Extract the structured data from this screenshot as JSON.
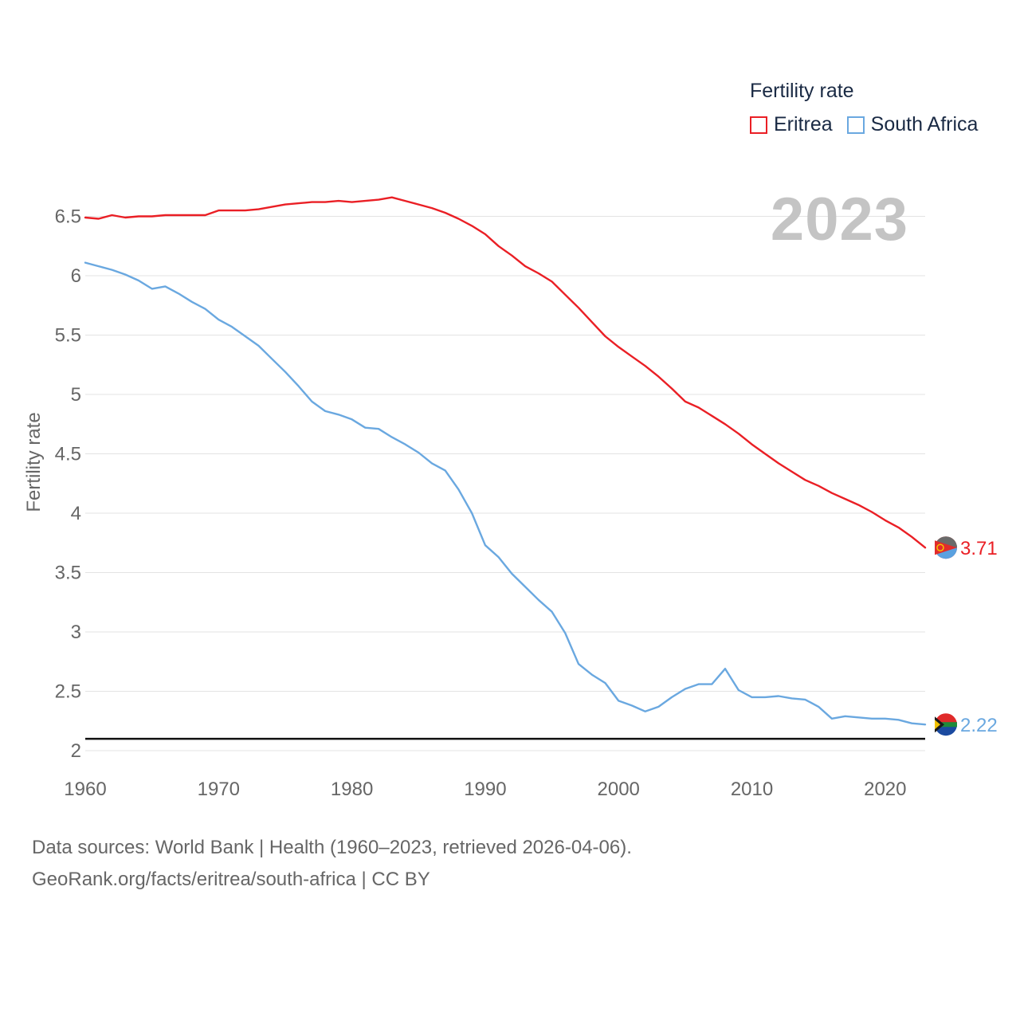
{
  "legend": {
    "title": "Fertility rate",
    "items": [
      {
        "label": "Eritrea",
        "color": "#ea1f25"
      },
      {
        "label": "South Africa",
        "color": "#6aa8e0"
      }
    ]
  },
  "year_label": "2023",
  "footer": {
    "line1": "Data sources: World Bank | Health (1960–2023, retrieved 2026-04-06).",
    "line2": "GeoRank.org/facts/eritrea/south-africa | CC BY"
  },
  "chart_data": {
    "type": "line",
    "title": "Fertility rate",
    "xlabel": "",
    "ylabel": "Fertility rate",
    "xlim": [
      1960,
      2023
    ],
    "ylim": [
      2,
      6.7
    ],
    "xticks": [
      1960,
      1970,
      1980,
      1990,
      2000,
      2010,
      2020
    ],
    "yticks": [
      2,
      2.5,
      3,
      3.5,
      4,
      4.5,
      5,
      5.5,
      6,
      6.5
    ],
    "ytick_labels": [
      "2",
      "2.5",
      "3",
      "3.5",
      "4",
      "4.5",
      "5",
      "5.5",
      "6",
      "6.5"
    ],
    "reference_line": 2.1,
    "grid": true,
    "x": [
      1960,
      1961,
      1962,
      1963,
      1964,
      1965,
      1966,
      1967,
      1968,
      1969,
      1970,
      1971,
      1972,
      1973,
      1974,
      1975,
      1976,
      1977,
      1978,
      1979,
      1980,
      1981,
      1982,
      1983,
      1984,
      1985,
      1986,
      1987,
      1988,
      1989,
      1990,
      1991,
      1992,
      1993,
      1994,
      1995,
      1996,
      1997,
      1998,
      1999,
      2000,
      2001,
      2002,
      2003,
      2004,
      2005,
      2006,
      2007,
      2008,
      2009,
      2010,
      2011,
      2012,
      2013,
      2014,
      2015,
      2016,
      2017,
      2018,
      2019,
      2020,
      2021,
      2022,
      2023
    ],
    "series": [
      {
        "name": "Eritrea",
        "color": "#ea1f25",
        "end_label": "3.71",
        "values": [
          6.49,
          6.48,
          6.51,
          6.49,
          6.5,
          6.5,
          6.51,
          6.51,
          6.51,
          6.51,
          6.55,
          6.55,
          6.55,
          6.56,
          6.58,
          6.6,
          6.61,
          6.62,
          6.62,
          6.63,
          6.62,
          6.63,
          6.64,
          6.66,
          6.63,
          6.6,
          6.57,
          6.53,
          6.48,
          6.42,
          6.35,
          6.25,
          6.17,
          6.08,
          6.02,
          5.95,
          5.84,
          5.73,
          5.61,
          5.49,
          5.4,
          5.32,
          5.24,
          5.15,
          5.05,
          4.94,
          4.89,
          4.82,
          4.75,
          4.67,
          4.58,
          4.5,
          4.42,
          4.35,
          4.28,
          4.23,
          4.17,
          4.12,
          4.07,
          4.01,
          3.94,
          3.88,
          3.8,
          3.71
        ]
      },
      {
        "name": "South Africa",
        "color": "#6aa8e0",
        "end_label": "2.22",
        "values": [
          6.11,
          6.08,
          6.05,
          6.01,
          5.96,
          5.89,
          5.91,
          5.85,
          5.78,
          5.72,
          5.63,
          5.57,
          5.49,
          5.41,
          5.3,
          5.19,
          5.07,
          4.94,
          4.86,
          4.83,
          4.79,
          4.72,
          4.71,
          4.64,
          4.58,
          4.51,
          4.42,
          4.36,
          4.2,
          4.0,
          3.73,
          3.63,
          3.49,
          3.38,
          3.27,
          3.17,
          2.99,
          2.73,
          2.64,
          2.57,
          2.42,
          2.38,
          2.33,
          2.37,
          2.45,
          2.52,
          2.56,
          2.56,
          2.69,
          2.51,
          2.45,
          2.45,
          2.46,
          2.44,
          2.43,
          2.37,
          2.27,
          2.29,
          2.28,
          2.27,
          2.27,
          2.26,
          2.23,
          2.22
        ]
      }
    ]
  }
}
